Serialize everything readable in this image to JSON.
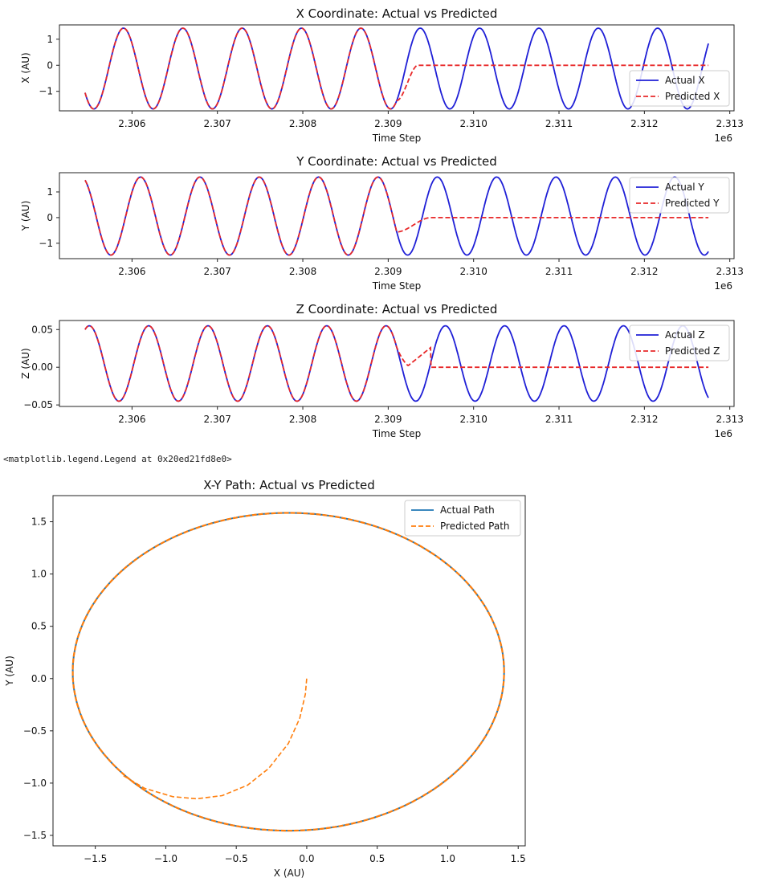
{
  "output_text": "<matplotlib.legend.Legend at 0x20ed21fd8e0>",
  "chart_data": [
    {
      "type": "line",
      "title": "X Coordinate: Actual vs Predicted",
      "xlabel": "Time Step",
      "ylabel": "X (AU)",
      "x_offset_label": "1e6",
      "xlim": [
        2305.15,
        2313.05
      ],
      "ylim": [
        -1.75,
        1.55
      ],
      "x_unit_scale": 1000,
      "xticks": [
        2306,
        2307,
        2308,
        2309,
        2310,
        2311,
        2312,
        2313
      ],
      "xtick_labels": [
        "2.306",
        "2.307",
        "2.308",
        "2.309",
        "2.310",
        "2.311",
        "2.312",
        "2.313"
      ],
      "yticks": [
        -1,
        0,
        1
      ],
      "ytick_labels": [
        "−1",
        "0",
        "1"
      ],
      "legend_position": "lower-right",
      "series": [
        {
          "name": "Actual X",
          "color": "#1f1fd6",
          "style": "solid",
          "x_start": 2305.45,
          "x_end": 2312.75,
          "period": 0.695,
          "amplitude": 1.55,
          "center": -0.125,
          "peaks_at": [
            2305.9,
            2306.595,
            2307.29,
            2307.985,
            2308.68,
            2309.375,
            2310.07,
            2310.765,
            2311.46,
            2312.155
          ],
          "description_values": {
            "max": 1.42,
            "min": -1.67
          }
        },
        {
          "name": "Predicted X",
          "color": "#e8292a",
          "style": "dashed",
          "x_start": 2305.45,
          "x_end": 2312.75,
          "follows_actual_until": 2309.1,
          "settles_to": 0.0,
          "settle_by": 2309.35
        }
      ]
    },
    {
      "type": "line",
      "title": "Y Coordinate: Actual vs Predicted",
      "xlabel": "Time Step",
      "ylabel": "Y (AU)",
      "x_offset_label": "1e6",
      "xlim": [
        2305.15,
        2313.05
      ],
      "ylim": [
        -1.6,
        1.75
      ],
      "x_unit_scale": 1000,
      "xticks": [
        2306,
        2307,
        2308,
        2309,
        2310,
        2311,
        2312,
        2313
      ],
      "xtick_labels": [
        "2.306",
        "2.307",
        "2.308",
        "2.309",
        "2.310",
        "2.311",
        "2.312",
        "2.313"
      ],
      "yticks": [
        -1,
        0,
        1
      ],
      "ytick_labels": [
        "−1",
        "0",
        "1"
      ],
      "legend_position": "upper-right",
      "series": [
        {
          "name": "Actual Y",
          "color": "#1f1fd6",
          "style": "solid",
          "x_start": 2305.45,
          "x_end": 2312.75,
          "period": 0.695,
          "amplitude": 1.52,
          "center": 0.06,
          "peaks_at": [
            2306.1,
            2306.795,
            2307.49,
            2308.185,
            2308.88,
            2309.575,
            2310.27,
            2310.965,
            2311.66,
            2312.355
          ],
          "description_values": {
            "max": 1.58,
            "min": -1.46
          }
        },
        {
          "name": "Predicted Y",
          "color": "#e8292a",
          "style": "dashed",
          "x_start": 2305.45,
          "x_end": 2312.75,
          "follows_actual_until": 2309.1,
          "settles_to": 0.0,
          "settle_by": 2309.5
        }
      ]
    },
    {
      "type": "line",
      "title": "Z Coordinate: Actual vs Predicted",
      "xlabel": "Time Step",
      "ylabel": "Z (AU)",
      "x_offset_label": "1e6",
      "xlim": [
        2305.15,
        2313.05
      ],
      "ylim": [
        -0.052,
        0.062
      ],
      "x_unit_scale": 1000,
      "xticks": [
        2306,
        2307,
        2308,
        2309,
        2310,
        2311,
        2312,
        2313
      ],
      "xtick_labels": [
        "2.306",
        "2.307",
        "2.308",
        "2.309",
        "2.310",
        "2.311",
        "2.312",
        "2.313"
      ],
      "yticks": [
        -0.05,
        0.0,
        0.05
      ],
      "ytick_labels": [
        "−0.05",
        "0.00",
        "0.05"
      ],
      "legend_position": "upper-right",
      "series": [
        {
          "name": "Actual Z",
          "color": "#1f1fd6",
          "style": "solid",
          "x_start": 2305.45,
          "x_end": 2312.75,
          "period": 0.695,
          "amplitude": 0.05,
          "center": 0.005,
          "peaks_at": [
            2305.5,
            2306.195,
            2306.89,
            2307.585,
            2308.28,
            2308.975,
            2309.67,
            2310.365,
            2311.06,
            2311.755,
            2312.45
          ],
          "description_values": {
            "max": 0.055,
            "min": -0.045
          }
        },
        {
          "name": "Predicted Z",
          "color": "#e8292a",
          "style": "dashed",
          "x_start": 2305.45,
          "x_end": 2312.75,
          "follows_actual_until": 2309.1,
          "dip_to": -0.01,
          "settles_to": 0.0,
          "settle_by": 2309.5
        }
      ]
    },
    {
      "type": "line",
      "title": "X-Y Path: Actual vs Predicted",
      "xlabel": "X (AU)",
      "ylabel": "Y (AU)",
      "xlim": [
        -1.8,
        1.55
      ],
      "ylim": [
        -1.6,
        1.75
      ],
      "xticks": [
        -1.5,
        -1.0,
        -0.5,
        0.0,
        0.5,
        1.0,
        1.5
      ],
      "xtick_labels": [
        "−1.5",
        "−1.0",
        "−0.5",
        "0.0",
        "0.5",
        "1.0",
        "1.5"
      ],
      "yticks": [
        -1.5,
        -1.0,
        -0.5,
        0.0,
        0.5,
        1.0,
        1.5
      ],
      "ytick_labels": [
        "−1.5",
        "−1.0",
        "−0.5",
        "0.0",
        "0.5",
        "1.0",
        "1.5"
      ],
      "legend_position": "upper-right",
      "series": [
        {
          "name": "Actual Path",
          "color": "#1f77b4",
          "style": "solid",
          "ellipse": {
            "cx": -0.13,
            "cy": 0.065,
            "rx": 1.53,
            "ry": 1.52
          }
        },
        {
          "name": "Predicted Path",
          "color": "#ff7f0e",
          "style": "dashed",
          "ellipse": {
            "cx": -0.13,
            "cy": 0.065,
            "rx": 1.53,
            "ry": 1.52
          },
          "spiral_points": [
            [
              -1.3,
              -0.93
            ],
            [
              -1.15,
              -1.05
            ],
            [
              -0.95,
              -1.13
            ],
            [
              -0.78,
              -1.15
            ],
            [
              -0.6,
              -1.12
            ],
            [
              -0.42,
              -1.02
            ],
            [
              -0.27,
              -0.86
            ],
            [
              -0.13,
              -0.62
            ],
            [
              -0.05,
              -0.38
            ],
            [
              -0.01,
              -0.15
            ],
            [
              0.0,
              0.0
            ]
          ]
        }
      ]
    }
  ]
}
